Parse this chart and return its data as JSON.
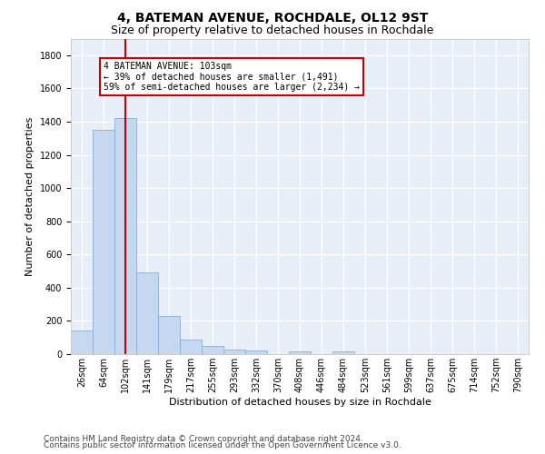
{
  "title": "4, BATEMAN AVENUE, ROCHDALE, OL12 9ST",
  "subtitle": "Size of property relative to detached houses in Rochdale",
  "xlabel": "Distribution of detached houses by size in Rochdale",
  "ylabel": "Number of detached properties",
  "bar_labels": [
    "26sqm",
    "64sqm",
    "102sqm",
    "141sqm",
    "179sqm",
    "217sqm",
    "255sqm",
    "293sqm",
    "332sqm",
    "370sqm",
    "408sqm",
    "446sqm",
    "484sqm",
    "523sqm",
    "561sqm",
    "599sqm",
    "637sqm",
    "675sqm",
    "714sqm",
    "752sqm",
    "790sqm"
  ],
  "bar_values": [
    140,
    1350,
    1420,
    490,
    230,
    85,
    50,
    30,
    20,
    0,
    15,
    0,
    15,
    0,
    0,
    0,
    0,
    0,
    0,
    0,
    0
  ],
  "bar_color": "#c5d8ef",
  "bar_edge_color": "#88afd4",
  "bg_color": "#e8eef8",
  "red_line_x": 2.5,
  "annotation_text": "4 BATEMAN AVENUE: 103sqm\n← 39% of detached houses are smaller (1,491)\n59% of semi-detached houses are larger (2,234) →",
  "annotation_box_color": "#cc0000",
  "ylim": [
    0,
    1900
  ],
  "yticks": [
    0,
    200,
    400,
    600,
    800,
    1000,
    1200,
    1400,
    1600,
    1800
  ],
  "footer_line1": "Contains HM Land Registry data © Crown copyright and database right 2024.",
  "footer_line2": "Contains public sector information licensed under the Open Government Licence v3.0.",
  "title_fontsize": 10,
  "subtitle_fontsize": 9,
  "tick_fontsize": 7,
  "ylabel_fontsize": 8,
  "xlabel_fontsize": 8,
  "footer_fontsize": 6.5
}
